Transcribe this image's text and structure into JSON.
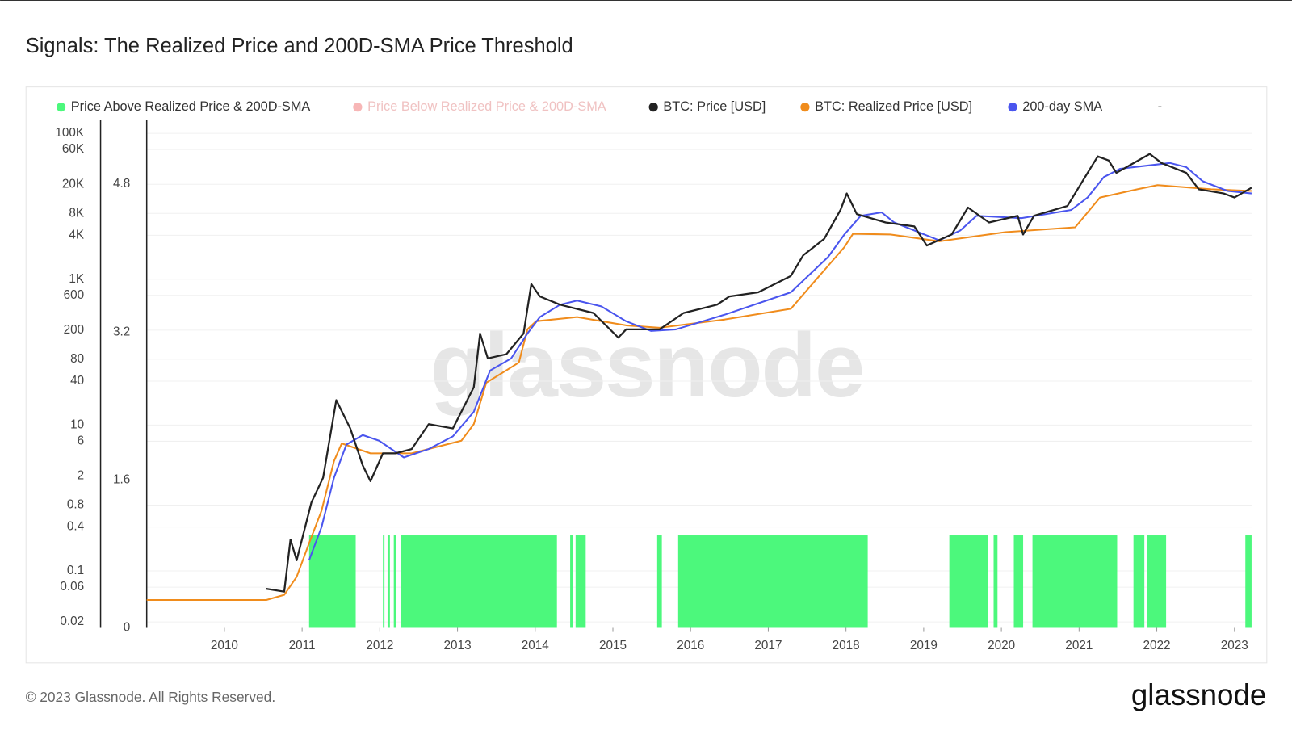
{
  "chart_data": {
    "type": "line",
    "title": "Signals: The Realized Price and 200D-SMA Price Threshold",
    "watermark": "glassnode",
    "footer": "© 2023 Glassnode. All Rights Reserved.",
    "logo": "glassnode",
    "legend_extra": "-",
    "log_scale": true,
    "grid": true,
    "xlim": [
      2009.0,
      2023.22
    ],
    "xticks": [
      2010,
      2011,
      2012,
      2013,
      2014,
      2015,
      2016,
      2017,
      2018,
      2019,
      2020,
      2021,
      2022,
      2023
    ],
    "ylim": [
      0.0166,
      155000
    ],
    "yticks": [
      0.02,
      0.06,
      0.1,
      0.4,
      0.8,
      2,
      6,
      10,
      40,
      80,
      200,
      600,
      {
        "value": 1000,
        "label": "1K"
      },
      {
        "value": 4000,
        "label": "4K"
      },
      {
        "value": 8000,
        "label": "8K"
      },
      {
        "value": 20000,
        "label": "20K"
      },
      {
        "value": 60000,
        "label": "60K"
      },
      {
        "value": 100000,
        "label": "100K"
      }
    ],
    "y2lim": [
      0,
      5.5
    ],
    "y2ticks": [
      0,
      1.6,
      3.2,
      4.8
    ],
    "series": [
      {
        "name": "Price Above Realized Price & 200D-SMA",
        "color": "#4cf87c",
        "type": "signal",
        "axis": "y2",
        "x_intervals": [
          [
            2011.09,
            2011.69
          ],
          [
            2012.04,
            2012.06
          ],
          [
            2012.1,
            2012.13
          ],
          [
            2012.18,
            2012.21
          ],
          [
            2012.27,
            2014.28
          ],
          [
            2014.45,
            2014.49
          ],
          [
            2014.52,
            2014.65
          ],
          [
            2015.57,
            2015.63
          ],
          [
            2015.84,
            2018.28
          ],
          [
            2019.33,
            2019.83
          ],
          [
            2019.9,
            2019.95
          ],
          [
            2020.16,
            2020.28
          ],
          [
            2020.4,
            2021.49
          ],
          [
            2021.7,
            2021.84
          ],
          [
            2021.88,
            2022.12
          ],
          [
            2023.14,
            2023.22
          ]
        ],
        "values": [
          1,
          1,
          1,
          1,
          1,
          1,
          1,
          1,
          1,
          1,
          1,
          1,
          1,
          1,
          1,
          1
        ]
      },
      {
        "name": "Price Below Realized Price & 200D-SMA",
        "color": "#f7b6b6",
        "type": "signal",
        "axis": "y2",
        "hidden": true
      },
      {
        "name": "BTC: Price [USD]",
        "color": "#222222",
        "type": "line",
        "x": [
          2010.54,
          2010.77,
          2010.85,
          2010.93,
          2011.12,
          2011.27,
          2011.44,
          2011.62,
          2011.78,
          2011.88,
          2012.04,
          2012.2,
          2012.41,
          2012.63,
          2012.94,
          2013.21,
          2013.29,
          2013.39,
          2013.63,
          2013.85,
          2013.95,
          2014.06,
          2014.32,
          2014.75,
          2015.07,
          2015.17,
          2015.6,
          2015.91,
          2016.34,
          2016.5,
          2016.87,
          2017.29,
          2017.45,
          2017.72,
          2017.93,
          2018.01,
          2018.14,
          2018.51,
          2018.88,
          2019.04,
          2019.36,
          2019.57,
          2019.84,
          2020.21,
          2020.28,
          2020.42,
          2020.85,
          2021.11,
          2021.24,
          2021.38,
          2021.48,
          2021.91,
          2022.06,
          2022.38,
          2022.54,
          2022.86,
          2023.0,
          2023.22
        ],
        "values": [
          0.057,
          0.052,
          0.27,
          0.14,
          0.87,
          1.9,
          22,
          9,
          2.8,
          1.7,
          4.1,
          4.1,
          4.7,
          10.3,
          9,
          33,
          180,
          82,
          94,
          180,
          857,
          580,
          447,
          344,
          158,
          205,
          205,
          344,
          447,
          580,
          661,
          1110,
          2130,
          3580,
          8900,
          15000,
          7800,
          6000,
          5300,
          2900,
          4100,
          9600,
          6000,
          7400,
          4100,
          7400,
          10100,
          28700,
          48300,
          42500,
          28700,
          52200,
          39300,
          28700,
          17100,
          15000,
          13200,
          18000
        ]
      },
      {
        "name": "BTC: Realized Price [USD]",
        "color": "#f08c1c",
        "type": "line",
        "x": [
          2009.0,
          2010.54,
          2010.77,
          2010.93,
          2011.09,
          2011.25,
          2011.41,
          2011.51,
          2011.88,
          2012.41,
          2013.05,
          2013.21,
          2013.37,
          2013.79,
          2013.9,
          2014.01,
          2014.54,
          2015.17,
          2015.6,
          2016.44,
          2017.29,
          2017.61,
          2017.98,
          2018.09,
          2018.57,
          2019.2,
          2020.05,
          2020.95,
          2021.27,
          2021.75,
          2022.01,
          2022.7,
          2023.22
        ],
        "values": [
          0.04,
          0.04,
          0.047,
          0.083,
          0.24,
          0.67,
          3.2,
          5.6,
          4.1,
          4.1,
          6.1,
          10.3,
          38,
          72,
          205,
          265,
          303,
          233,
          216,
          280,
          393,
          975,
          2760,
          4190,
          4100,
          3310,
          4420,
          5150,
          13200,
          17100,
          19500,
          17100,
          16200
        ]
      },
      {
        "name": "200-day SMA",
        "color": "#4a55ee",
        "type": "line",
        "x": [
          2011.09,
          2011.25,
          2011.41,
          2011.57,
          2011.78,
          2011.99,
          2012.31,
          2012.63,
          2012.94,
          2013.21,
          2013.42,
          2013.69,
          2013.9,
          2014.06,
          2014.32,
          2014.54,
          2014.85,
          2015.17,
          2015.49,
          2015.81,
          2016.44,
          2017.29,
          2017.77,
          2017.98,
          2018.19,
          2018.46,
          2018.62,
          2019.2,
          2019.47,
          2019.68,
          2020.26,
          2020.9,
          2021.11,
          2021.32,
          2021.53,
          2022.17,
          2022.38,
          2022.59,
          2022.91,
          2023.22
        ],
        "values": [
          0.14,
          0.4,
          1.9,
          5.4,
          7.3,
          6.1,
          3.6,
          4.7,
          7.0,
          15.2,
          56,
          82,
          180,
          303,
          447,
          509,
          425,
          265,
          195,
          205,
          327,
          661,
          2020,
          4100,
          7400,
          8240,
          6000,
          3400,
          4650,
          7400,
          6870,
          8900,
          13200,
          25200,
          32700,
          39300,
          34400,
          22100,
          16200,
          15000
        ]
      }
    ]
  }
}
